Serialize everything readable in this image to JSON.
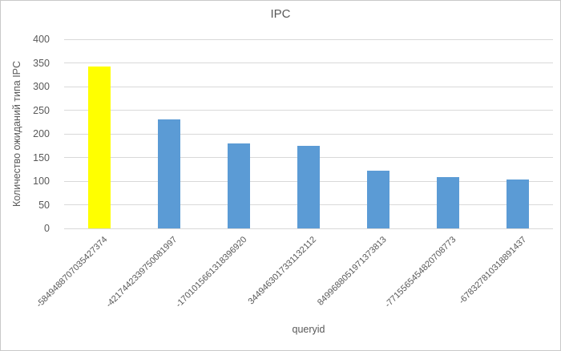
{
  "window": {
    "background": "#ffffff",
    "border_color": "#c9c9c9"
  },
  "chart_data": {
    "type": "bar",
    "title": "IPC",
    "xlabel": "queryid",
    "ylabel": "Количество ожиданий типа IPC",
    "categories": [
      "-5849488707035427374",
      "-4217442339750081997",
      "-1701015661318396920",
      "3449463017331132112",
      "8499688051971373813",
      "-7715565454820708773",
      "-678327810318891437"
    ],
    "values": [
      342,
      231,
      179,
      174,
      122,
      108,
      104
    ],
    "ylim": [
      0,
      400
    ],
    "yticks": [
      0,
      50,
      100,
      150,
      200,
      250,
      300,
      350,
      400
    ],
    "grid": true,
    "legend_position": "none",
    "x_label_rotation_deg": 45,
    "colors": {
      "bar_default": "#5b9bd5",
      "bar_highlight": "#ffff00",
      "text": "#595959",
      "gridline": "#d9d9d9"
    },
    "highlight_index": 0
  }
}
